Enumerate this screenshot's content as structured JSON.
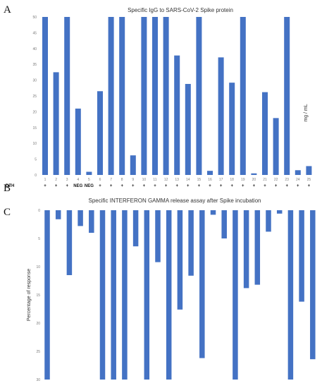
{
  "panels": {
    "a": "A",
    "b": "B",
    "c": "C"
  },
  "dth_row": {
    "label": "DTH",
    "values": [
      "+",
      "+",
      "+",
      "NEG",
      "NEG",
      "+",
      "+",
      "+",
      "+",
      "+",
      "+",
      "+",
      "+",
      "+",
      "+",
      "+",
      "+",
      "+",
      "+",
      "+",
      "+",
      "+",
      "+",
      "+",
      "+"
    ]
  },
  "colors": {
    "bar": "#4472c4"
  },
  "chart_data": [
    {
      "type": "bar",
      "title": "Specific IgG to SARS-CoV-2 Spike protein",
      "ylabel": "mg / mL",
      "xlabel": "",
      "categories": [
        "1",
        "2",
        "3",
        "4",
        "5",
        "6",
        "7",
        "8",
        "9",
        "10",
        "11",
        "12",
        "13",
        "14",
        "15",
        "16",
        "17",
        "18",
        "19",
        "20",
        "21",
        "22",
        "23",
        "24",
        "25"
      ],
      "values": [
        50,
        32.5,
        50,
        21,
        1,
        26.5,
        50,
        50,
        6.2,
        50,
        50,
        50,
        37.8,
        28.8,
        50,
        1.3,
        37.2,
        29.2,
        50,
        0.5,
        26.2,
        18,
        50,
        1.5,
        2.8
      ],
      "ylim": [
        0,
        50
      ],
      "yticks": [
        "0",
        "5",
        "10",
        "15",
        "20",
        "25",
        "30",
        "35",
        "40",
        "45",
        "50"
      ],
      "grid": false,
      "legend": "none"
    },
    {
      "type": "bar",
      "title": "Specific INTERFERON GAMMA release assay after Spike incubation",
      "ylabel": "Percentage of response",
      "xlabel": "",
      "inverted_y": true,
      "values": [
        30,
        1.6,
        11.5,
        2.8,
        4,
        30,
        30,
        30,
        6.4,
        30,
        9.2,
        30,
        17.6,
        11.6,
        26.2,
        0.8,
        5,
        30,
        13.8,
        13.2,
        3.8,
        0.6,
        30,
        16.2,
        26.4
      ],
      "ylim": [
        0,
        30
      ],
      "yticks": [
        "0",
        "5",
        "10",
        "15",
        "20",
        "25",
        "30"
      ],
      "grid": false,
      "legend": "none"
    }
  ]
}
